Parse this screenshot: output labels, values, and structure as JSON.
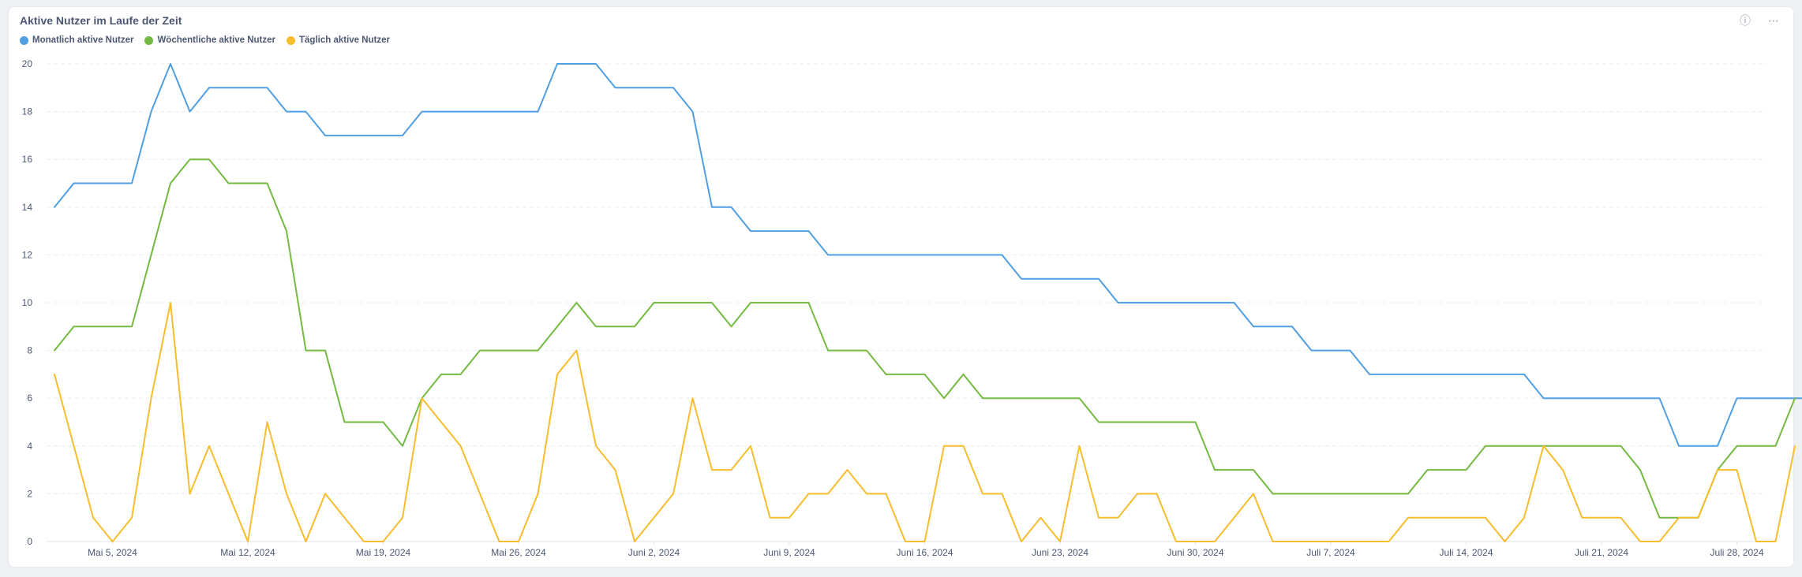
{
  "card": {
    "title": "Aktive Nutzer im Laufe der Zeit",
    "info_icon": "info-icon",
    "more_icon": "more-options-icon"
  },
  "chart_data": {
    "type": "line",
    "title": "Aktive Nutzer im Laufe der Zeit",
    "xlabel": "",
    "ylabel": "",
    "ylim": [
      0,
      20
    ],
    "y_ticks": [
      0,
      2,
      4,
      6,
      8,
      10,
      12,
      14,
      16,
      18,
      20
    ],
    "grid": true,
    "legend_position": "top-left",
    "x_start": "2024-05-02",
    "x_end": "2024-07-30",
    "x_tick_labels": [
      "Mai 5, 2024",
      "Mai 12, 2024",
      "Mai 19, 2024",
      "Mai 26, 2024",
      "Juni 2, 2024",
      "Juni 9, 2024",
      "Juni 16, 2024",
      "Juni 23, 2024",
      "Juni 30, 2024",
      "Juli 7, 2024",
      "Juli 14, 2024",
      "Juli 21, 2024",
      "Juli 28, 2024"
    ],
    "series": [
      {
        "name": "Monatlich aktive Nutzer",
        "color": "#509ee3",
        "values": [
          14,
          15,
          15,
          15,
          15,
          18,
          20,
          18,
          19,
          19,
          19,
          19,
          18,
          18,
          17,
          17,
          17,
          17,
          17,
          18,
          18,
          18,
          18,
          18,
          18,
          18,
          20,
          20,
          20,
          19,
          19,
          19,
          19,
          18,
          14,
          14,
          13,
          13,
          13,
          13,
          12,
          12,
          12,
          12,
          12,
          12,
          12,
          12,
          12,
          12,
          11,
          11,
          11,
          11,
          11,
          10,
          10,
          10,
          10,
          10,
          10,
          10,
          9,
          9,
          9,
          8,
          8,
          8,
          7,
          7,
          7,
          7,
          7,
          7,
          7,
          7,
          7,
          6,
          6,
          6,
          6,
          6,
          6,
          6,
          4,
          4,
          4,
          6,
          6,
          6,
          6,
          6
        ]
      },
      {
        "name": "Wöchentliche aktive Nutzer",
        "color": "#74b940",
        "values": [
          8,
          9,
          9,
          9,
          9,
          12,
          15,
          16,
          16,
          15,
          15,
          15,
          13,
          8,
          8,
          5,
          5,
          5,
          4,
          6,
          7,
          7,
          8,
          8,
          8,
          8,
          9,
          10,
          9,
          9,
          9,
          10,
          10,
          10,
          10,
          9,
          10,
          10,
          10,
          10,
          8,
          8,
          8,
          7,
          7,
          7,
          6,
          7,
          6,
          6,
          6,
          6,
          6,
          6,
          5,
          5,
          5,
          5,
          5,
          5,
          3,
          3,
          3,
          2,
          2,
          2,
          2,
          2,
          2,
          2,
          2,
          3,
          3,
          3,
          4,
          4,
          4,
          4,
          4,
          4,
          4,
          4,
          3,
          1,
          1,
          1,
          3,
          4,
          4,
          4,
          6
        ]
      },
      {
        "name": "Täglich aktive Nutzer",
        "color": "#f7bd2d",
        "values": [
          7,
          4,
          1,
          0,
          1,
          6,
          10,
          2,
          4,
          2,
          0,
          5,
          2,
          0,
          2,
          1,
          0,
          0,
          1,
          6,
          5,
          4,
          2,
          0,
          0,
          2,
          7,
          8,
          4,
          3,
          0,
          1,
          2,
          6,
          3,
          3,
          4,
          1,
          1,
          2,
          2,
          3,
          2,
          2,
          0,
          0,
          4,
          4,
          2,
          2,
          0,
          1,
          0,
          4,
          1,
          1,
          2,
          2,
          0,
          0,
          0,
          1,
          2,
          0,
          0,
          0,
          0,
          0,
          0,
          0,
          1,
          1,
          1,
          1,
          1,
          0,
          1,
          4,
          3,
          1,
          1,
          1,
          0,
          0,
          1,
          1,
          3,
          3,
          0,
          0,
          4
        ]
      }
    ]
  }
}
